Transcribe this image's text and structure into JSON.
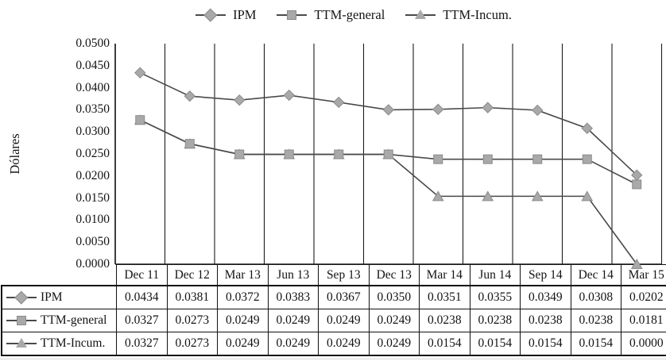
{
  "chart_data": {
    "type": "line",
    "title": "",
    "xlabel": "",
    "ylabel": "Dólares",
    "legend_position": "top",
    "grid": "vertical-only",
    "ylim": [
      0,
      0.05
    ],
    "y_ticks": [
      "0.0500",
      "0.0450",
      "0.0400",
      "0.0350",
      "0.0300",
      "0.0250",
      "0.0200",
      "0.0150",
      "0.0100",
      "0.0050",
      "0.0000"
    ],
    "categories": [
      "Dec 11",
      "Dec 12",
      "Mar 13",
      "Jun 13",
      "Sep 13",
      "Dec 13",
      "Mar 14",
      "Jun 14",
      "Sep 14",
      "Dec 14",
      "Mar 15"
    ],
    "series": [
      {
        "name": "IPM",
        "marker": "diamond",
        "values": [
          "0.0434",
          "0.0381",
          "0.0372",
          "0.0383",
          "0.0367",
          "0.0350",
          "0.0351",
          "0.0355",
          "0.0349",
          "0.0308",
          "0.0202"
        ]
      },
      {
        "name": "TTM-general",
        "marker": "square",
        "values": [
          "0.0327",
          "0.0273",
          "0.0249",
          "0.0249",
          "0.0249",
          "0.0249",
          "0.0238",
          "0.0238",
          "0.0238",
          "0.0238",
          "0.0181"
        ]
      },
      {
        "name": "TTM-Incum.",
        "marker": "triangle",
        "values": [
          "0.0327",
          "0.0273",
          "0.0249",
          "0.0249",
          "0.0249",
          "0.0249",
          "0.0154",
          "0.0154",
          "0.0154",
          "0.0154",
          "0.0000"
        ]
      }
    ]
  },
  "colors": {
    "series_line": "#4a4a4a",
    "marker_fill": "#a9a9a9",
    "marker_edge": "#8a8a8a",
    "gridline": "#1c1c1c",
    "text": "#141414"
  }
}
